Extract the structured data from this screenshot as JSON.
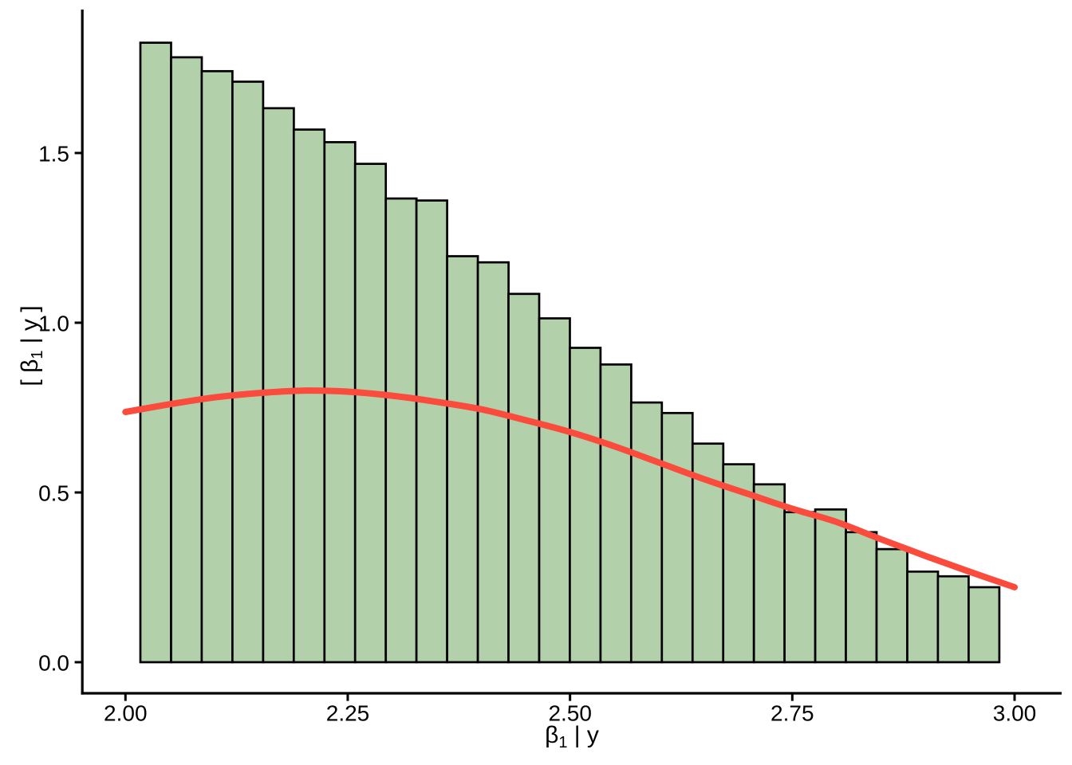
{
  "figure": {
    "background": "#ffffff",
    "description": "Histogram of posterior samples of beta_1 given y with overlaid smooth density curve"
  },
  "colors": {
    "bar_fill": "#b2d1aa",
    "bar_stroke": "#000000",
    "curve": "#fa4b3c",
    "axis": "#000000",
    "text": "#000000",
    "background": "#ffffff"
  },
  "x_axis": {
    "title": "β₁ | y",
    "title_parts": {
      "beta": "β",
      "sub": "1",
      "rest": " | y"
    },
    "tick_labels": [
      "2.00",
      "2.25",
      "2.50",
      "2.75",
      "3.00"
    ]
  },
  "y_axis": {
    "title": "[ β₁ | y ]",
    "title_parts": {
      "prefix": "[ ",
      "beta": "β",
      "sub": "1",
      "rest": " | y",
      "suffix": " ]"
    },
    "tick_labels": [
      "0.0",
      "0.5",
      "1.0",
      "1.5"
    ]
  },
  "chart_data": {
    "type": "bar",
    "subtype": "histogram-with-density-overlay",
    "title": "",
    "xlabel": "β₁ | y",
    "ylabel": "[ β₁ | y ]",
    "xlim": [
      2.0,
      3.0
    ],
    "ylim": [
      0.0,
      1.92
    ],
    "grid": false,
    "legend": null,
    "x_ticks": {
      "values": [
        2.0,
        2.25,
        2.5,
        2.75,
        3.0
      ],
      "labels": [
        "2.00",
        "2.25",
        "2.50",
        "2.75",
        "3.00"
      ]
    },
    "y_ticks": {
      "values": [
        0.0,
        0.5,
        1.0,
        1.5
      ],
      "labels": [
        "0.0",
        "0.5",
        "1.0",
        "1.5"
      ]
    },
    "histogram": {
      "bin_start": 2.0168,
      "bin_width": 0.0345,
      "densities": [
        1.825,
        1.782,
        1.741,
        1.71,
        1.632,
        1.569,
        1.532,
        1.468,
        1.366,
        1.36,
        1.196,
        1.178,
        1.085,
        1.013,
        0.926,
        0.877,
        0.765,
        0.734,
        0.644,
        0.583,
        0.524,
        0.442,
        0.45,
        0.383,
        0.333,
        0.267,
        0.253,
        0.221
      ]
    },
    "series": [
      {
        "name": "density-curve",
        "type": "line",
        "color": "#fa4b3c",
        "stroke_width": 8,
        "points": [
          [
            2.0,
            0.737
          ],
          [
            2.05,
            0.76
          ],
          [
            2.1,
            0.78
          ],
          [
            2.15,
            0.793
          ],
          [
            2.2,
            0.8
          ],
          [
            2.25,
            0.797
          ],
          [
            2.3,
            0.785
          ],
          [
            2.35,
            0.767
          ],
          [
            2.4,
            0.745
          ],
          [
            2.45,
            0.713
          ],
          [
            2.5,
            0.678
          ],
          [
            2.55,
            0.636
          ],
          [
            2.6,
            0.588
          ],
          [
            2.65,
            0.54
          ],
          [
            2.7,
            0.496
          ],
          [
            2.75,
            0.452
          ],
          [
            2.8,
            0.413
          ],
          [
            2.85,
            0.362
          ],
          [
            2.9,
            0.313
          ],
          [
            2.95,
            0.266
          ],
          [
            3.0,
            0.221
          ]
        ]
      }
    ]
  }
}
